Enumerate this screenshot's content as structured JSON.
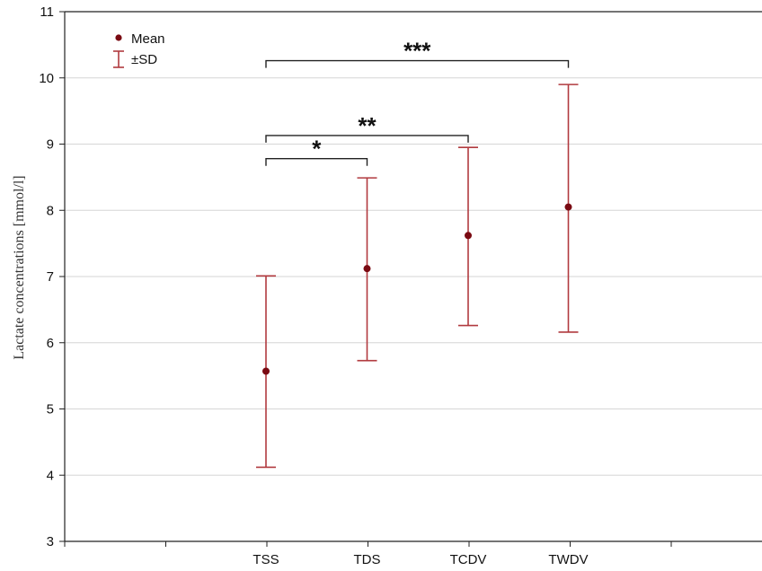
{
  "chart_data": {
    "type": "errorbar",
    "title": "",
    "xlabel": "",
    "ylabel": "Lactate concentrations [mmol/l]",
    "ylim": [
      3,
      11
    ],
    "yticks": [
      3,
      4,
      5,
      6,
      7,
      8,
      9,
      10,
      11
    ],
    "grid": "horizontal",
    "categories": [
      "TSS",
      "TDS",
      "TCDV",
      "TWDV"
    ],
    "series": [
      {
        "name": "Mean",
        "values": [
          5.57,
          7.12,
          7.62,
          8.05
        ],
        "error_low": [
          4.12,
          5.73,
          6.26,
          6.16
        ],
        "error_high": [
          7.01,
          8.49,
          8.95,
          9.9
        ],
        "error_name": "±SD"
      }
    ],
    "significance": [
      {
        "from": "TSS",
        "to": "TDS",
        "label": "*",
        "y": 8.78
      },
      {
        "from": "TSS",
        "to": "TCDV",
        "label": "**",
        "y": 9.13
      },
      {
        "from": "TSS",
        "to": "TWDV",
        "label": "***",
        "y": 10.26
      }
    ],
    "legend": {
      "position": "top-left",
      "entries": [
        {
          "label": "Mean",
          "marker": "dot"
        },
        {
          "label": "±SD",
          "marker": "errorbar"
        }
      ]
    },
    "colors": {
      "point": "#7a0a12",
      "errorbar": "#b13a3f",
      "bracket": "#222222",
      "grid": "#d6d6d6",
      "axis": "#222222"
    }
  }
}
